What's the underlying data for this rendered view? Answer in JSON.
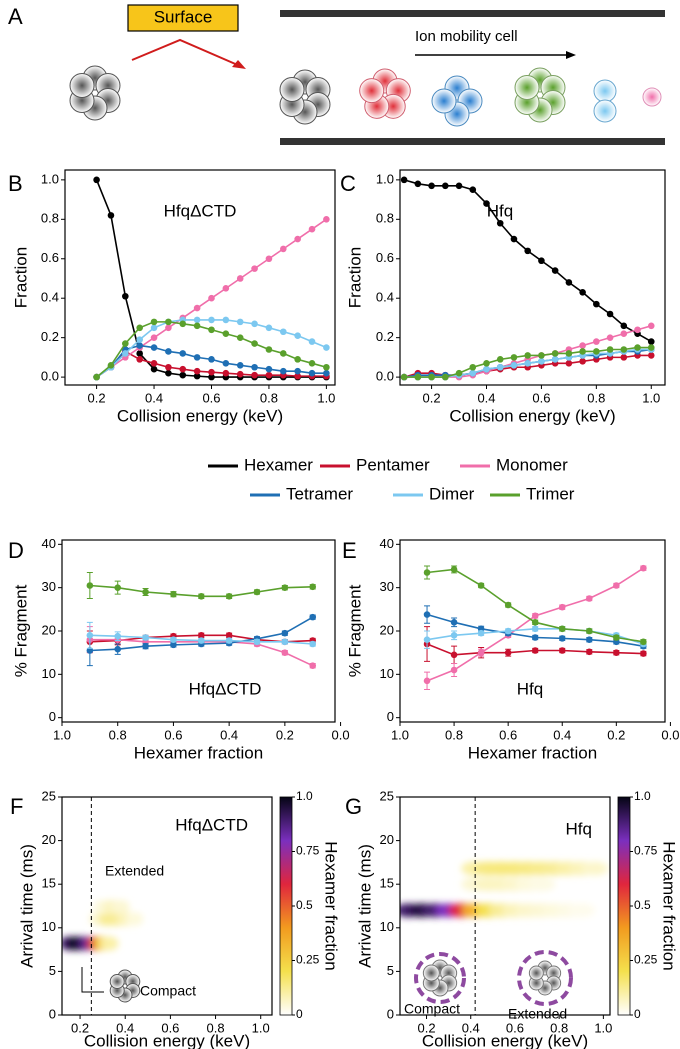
{
  "panel_a": {
    "label": "A",
    "surface": "Surface",
    "cell": "Ion mobility cell"
  },
  "legend": [
    {
      "name": "Hexamer",
      "color": "#000000"
    },
    {
      "name": "Pentamer",
      "color": "#c8102e"
    },
    {
      "name": "Monomer",
      "color": "#f06eaa"
    },
    {
      "name": "Tetramer",
      "color": "#1f6fb4"
    },
    {
      "name": "Dimer",
      "color": "#7cc8f0"
    },
    {
      "name": "Trimer",
      "color": "#5aa02c"
    }
  ],
  "chart_data": [
    {
      "type": "line",
      "panel": "B",
      "annotation": "HfqΔCTD",
      "xlabel": "Collision energy (keV)",
      "ylabel": "Fraction",
      "x": [
        0.2,
        0.25,
        0.3,
        0.35,
        0.4,
        0.45,
        0.5,
        0.55,
        0.6,
        0.65,
        0.7,
        0.75,
        0.8,
        0.85,
        0.9,
        0.95,
        1.0
      ],
      "xlim": [
        0.09,
        1.03
      ],
      "xticks": [
        0.2,
        0.4,
        0.6,
        0.8,
        {
          "value": 1,
          "label": "1.0"
        }
      ],
      "ylim": [
        -0.04,
        1.05
      ],
      "yticks": [
        {
          "value": 0,
          "label": "0.0"
        },
        0.2,
        0.4,
        0.6,
        0.8,
        {
          "value": 1,
          "label": "1.0"
        }
      ],
      "series": [
        {
          "color": "#000000",
          "values": [
            1.0,
            0.82,
            0.41,
            0.12,
            0.04,
            0.02,
            0.01,
            0.005,
            0,
            0,
            0,
            0,
            0,
            0,
            0,
            0,
            0
          ]
        },
        {
          "color": "#c8102e",
          "values": [
            0,
            0.05,
            0.13,
            0.09,
            0.07,
            0.05,
            0.04,
            0.03,
            0.025,
            0.02,
            0.015,
            0.01,
            0.01,
            0.01,
            0.005,
            0.005,
            0.005
          ]
        },
        {
          "color": "#f06eaa",
          "values": [
            0,
            0.05,
            0.1,
            0.15,
            0.2,
            0.25,
            0.3,
            0.35,
            0.4,
            0.45,
            0.5,
            0.55,
            0.6,
            0.65,
            0.7,
            0.75,
            0.8
          ]
        },
        {
          "color": "#1f6fb4",
          "values": [
            0,
            0.05,
            0.14,
            0.16,
            0.15,
            0.13,
            0.12,
            0.1,
            0.09,
            0.07,
            0.06,
            0.05,
            0.04,
            0.03,
            0.03,
            0.02,
            0.02
          ]
        },
        {
          "color": "#7cc8f0",
          "values": [
            0,
            0.05,
            0.12,
            0.19,
            0.25,
            0.28,
            0.29,
            0.29,
            0.29,
            0.29,
            0.28,
            0.27,
            0.25,
            0.23,
            0.21,
            0.18,
            0.15
          ]
        },
        {
          "color": "#5aa02c",
          "values": [
            0,
            0.06,
            0.17,
            0.25,
            0.28,
            0.28,
            0.27,
            0.26,
            0.24,
            0.22,
            0.2,
            0.17,
            0.14,
            0.12,
            0.09,
            0.07,
            0.05
          ]
        }
      ]
    },
    {
      "type": "line",
      "panel": "C",
      "annotation": "Hfq",
      "xlabel": "Collision energy (keV)",
      "ylabel": "Fraction",
      "x": [
        0.1,
        0.15,
        0.2,
        0.25,
        0.3,
        0.35,
        0.4,
        0.45,
        0.5,
        0.55,
        0.6,
        0.65,
        0.7,
        0.75,
        0.8,
        0.85,
        0.9,
        0.95,
        1.0
      ],
      "xlim": [
        0.085,
        1.05
      ],
      "xticks": [
        0.2,
        0.4,
        0.6,
        0.8,
        {
          "value": 1,
          "label": "1.0"
        }
      ],
      "ylim": [
        -0.04,
        1.05
      ],
      "yticks": [
        {
          "value": 0,
          "label": "0.0"
        },
        0.2,
        0.4,
        0.6,
        0.8,
        {
          "value": 1,
          "label": "1.0"
        }
      ],
      "series": [
        {
          "color": "#000000",
          "values": [
            1.0,
            0.98,
            0.97,
            0.97,
            0.97,
            0.95,
            0.88,
            0.78,
            0.7,
            0.64,
            0.59,
            0.54,
            0.48,
            0.43,
            0.37,
            0.32,
            0.26,
            0.22,
            0.18
          ]
        },
        {
          "color": "#c8102e",
          "values": [
            0,
            0.02,
            0.02,
            0.01,
            0.01,
            0.02,
            0.03,
            0.04,
            0.05,
            0.05,
            0.06,
            0.07,
            0.07,
            0.08,
            0.09,
            0.1,
            0.1,
            0.11,
            0.11
          ]
        },
        {
          "color": "#f06eaa",
          "values": [
            0,
            0,
            0,
            0,
            0,
            0.01,
            0.03,
            0.05,
            0.07,
            0.09,
            0.11,
            0.12,
            0.14,
            0.16,
            0.18,
            0.2,
            0.22,
            0.24,
            0.26
          ]
        },
        {
          "color": "#1f6fb4",
          "values": [
            0,
            0.01,
            0.01,
            0.01,
            0.01,
            0.02,
            0.04,
            0.05,
            0.06,
            0.07,
            0.08,
            0.09,
            0.1,
            0.11,
            0.11,
            0.12,
            0.13,
            0.13,
            0.14
          ]
        },
        {
          "color": "#7cc8f0",
          "values": [
            0,
            0,
            0,
            0,
            0.01,
            0.02,
            0.04,
            0.05,
            0.06,
            0.07,
            0.08,
            0.09,
            0.1,
            0.11,
            0.12,
            0.12,
            0.13,
            0.14,
            0.14
          ]
        },
        {
          "color": "#5aa02c",
          "values": [
            0,
            0,
            0,
            0,
            0.02,
            0.05,
            0.07,
            0.09,
            0.1,
            0.11,
            0.11,
            0.12,
            0.12,
            0.13,
            0.13,
            0.14,
            0.14,
            0.15,
            0.15
          ]
        }
      ]
    },
    {
      "type": "line",
      "panel": "D",
      "annotation": "HfqΔCTD",
      "xlabel": "Hexamer fraction",
      "ylabel": "% Fragment",
      "x": [
        0.9,
        0.8,
        0.7,
        0.6,
        0.5,
        0.4,
        0.3,
        0.2,
        0.1
      ],
      "xlim": [
        1.0,
        0.02
      ],
      "xticks": [
        {
          "value": 1,
          "label": "1.0"
        },
        0.8,
        0.6,
        0.4,
        0.2,
        {
          "value": 0,
          "label": "0.0"
        }
      ],
      "ylim": [
        -1,
        41
      ],
      "yticks": [
        0,
        10,
        20,
        30,
        40
      ],
      "series": [
        {
          "color": "#c8102e",
          "values": [
            17.5,
            17.8,
            18.5,
            18.8,
            19,
            19,
            18,
            17.5,
            17.8
          ],
          "errors": [
            2.5,
            1,
            0.5,
            0.5,
            0.5,
            0.5,
            0.5,
            0.5,
            0.5
          ]
        },
        {
          "color": "#f06eaa",
          "values": [
            18,
            18,
            17.5,
            17.5,
            17.5,
            17.5,
            17,
            15,
            12
          ],
          "errors": [
            3,
            1,
            0.5,
            0.5,
            0.5,
            0.5,
            0.5,
            0.5,
            0.5
          ]
        },
        {
          "color": "#1f6fb4",
          "values": [
            15.5,
            15.8,
            16.5,
            16.8,
            17,
            17.2,
            18.2,
            19.5,
            23.2
          ],
          "errors": [
            3.5,
            1.2,
            0.6,
            0.5,
            0.5,
            0.5,
            0.5,
            0.5,
            0.5
          ]
        },
        {
          "color": "#7cc8f0",
          "values": [
            19,
            18.8,
            18.5,
            18,
            17.8,
            17.8,
            17.5,
            17.5,
            17
          ],
          "errors": [
            3,
            1,
            0.5,
            0.5,
            0.5,
            0.5,
            0.5,
            0.5,
            0.5
          ]
        },
        {
          "color": "#5aa02c",
          "values": [
            30.5,
            30,
            29,
            28.5,
            28,
            28,
            29,
            30,
            30.2
          ],
          "errors": [
            3,
            1.5,
            0.8,
            0.6,
            0.5,
            0.5,
            0.5,
            0.5,
            0.5
          ]
        }
      ]
    },
    {
      "type": "line",
      "panel": "E",
      "annotation": "Hfq",
      "xlabel": "Hexamer fraction",
      "ylabel": "% Fragment",
      "x": [
        0.9,
        0.8,
        0.7,
        0.6,
        0.5,
        0.4,
        0.3,
        0.2,
        0.1
      ],
      "xlim": [
        1.0,
        0.02
      ],
      "xticks": [
        {
          "value": 1,
          "label": "1.0"
        },
        0.8,
        0.6,
        0.4,
        0.2,
        {
          "value": 0,
          "label": "0.0"
        }
      ],
      "ylim": [
        -1,
        41
      ],
      "yticks": [
        0,
        10,
        20,
        30,
        40
      ],
      "series": [
        {
          "color": "#c8102e",
          "values": [
            17,
            14.5,
            15,
            15,
            15.5,
            15.5,
            15.2,
            15,
            14.8
          ],
          "errors": [
            4,
            2,
            1.2,
            0.8,
            0.5,
            0.5,
            0.5,
            0.5,
            0.5
          ]
        },
        {
          "color": "#f06eaa",
          "values": [
            8.5,
            11,
            15,
            19,
            23.5,
            25.5,
            27.5,
            30.5,
            34.5
          ],
          "errors": [
            2,
            1.5,
            0.8,
            0.5,
            0.5,
            0.5,
            0.5,
            0.5,
            0.5
          ]
        },
        {
          "color": "#1f6fb4",
          "values": [
            23.8,
            22,
            20.5,
            19.5,
            18.5,
            18.3,
            18,
            17.5,
            16.5
          ],
          "errors": [
            2,
            1,
            0.6,
            0.5,
            0.5,
            0.5,
            0.5,
            0.5,
            0.5
          ]
        },
        {
          "color": "#7cc8f0",
          "values": [
            18,
            19,
            19.5,
            20,
            20.5,
            20.5,
            20,
            19,
            17
          ],
          "errors": [
            2,
            1,
            0.5,
            0.5,
            0.5,
            0.5,
            0.5,
            0.5,
            0.5
          ]
        },
        {
          "color": "#5aa02c",
          "values": [
            33.5,
            34.2,
            30.5,
            26,
            22,
            20.5,
            20,
            18.5,
            17.5
          ],
          "errors": [
            1.5,
            0.8,
            0.5,
            0.5,
            0.5,
            0.5,
            0.5,
            0.5,
            0.5
          ]
        }
      ]
    },
    {
      "type": "heatmap",
      "panel": "F",
      "annotation": "HfqΔCTD",
      "xlabel": "Collision energy (keV)",
      "ylabel": "Arrival time (ms)",
      "extended_label": "Extended",
      "compact_label": "Compact",
      "divider_x": 0.25,
      "xlim": [
        0.12,
        1.05
      ],
      "xticks": [
        0.2,
        0.4,
        0.6,
        0.8,
        {
          "value": 1,
          "label": "1.0"
        }
      ],
      "ylim": [
        0,
        25
      ],
      "yticks": [
        0,
        5,
        10,
        15,
        20,
        25
      ],
      "spots": {
        "x": [
          0.15,
          0.18,
          0.21,
          0.24,
          0.27,
          0.3,
          0.33,
          0.28,
          0.32,
          0.36,
          0.4,
          0.44,
          0.3,
          0.34,
          0.38
        ],
        "y": [
          8.2,
          8.2,
          8.2,
          8.2,
          8.2,
          8.2,
          8.2,
          11,
          11,
          11,
          11,
          11,
          12.4,
          12.4,
          12.4
        ],
        "values": [
          0.9,
          1.0,
          0.95,
          0.85,
          0.55,
          0.25,
          0.1,
          0.05,
          0.12,
          0.12,
          0.08,
          0.04,
          0.04,
          0.07,
          0.05
        ]
      },
      "colorbar_label": "Hexamer fraction",
      "clim": [
        0,
        1
      ],
      "cticks": [
        0,
        0.25,
        0.5,
        0.75,
        {
          "value": 1,
          "label": "1.0"
        }
      ],
      "colormap": [
        "#ffffff",
        "#f4e04d",
        "#f29b1f",
        "#e0263d",
        "#7b2fbe",
        "#050514"
      ]
    },
    {
      "type": "heatmap",
      "panel": "G",
      "annotation": "Hfq",
      "xlabel": "Collision energy (keV)",
      "ylabel": "Arrival time (ms)",
      "extended_label": "Extended",
      "compact_label": "Compact",
      "divider_x": 0.42,
      "xlim": [
        0.08,
        1.03
      ],
      "xticks": [
        0.2,
        0.4,
        0.6,
        0.8,
        {
          "value": 1,
          "label": "1.0"
        }
      ],
      "ylim": [
        0,
        25
      ],
      "yticks": [
        0,
        5,
        10,
        15,
        20,
        25
      ],
      "spots": {
        "x": [
          0.12,
          0.18,
          0.24,
          0.3,
          0.36,
          0.42,
          0.48,
          0.54,
          0.6,
          0.66,
          0.72,
          0.78,
          0.84,
          0.9,
          0.42,
          0.48,
          0.54,
          0.6,
          0.66,
          0.72,
          0.78,
          0.84,
          0.9,
          0.96,
          0.42,
          0.48,
          0.54,
          0.6,
          0.66,
          0.72
        ],
        "y": [
          12,
          12,
          12,
          12,
          12,
          12,
          12,
          12,
          12,
          12,
          12,
          12,
          12,
          12,
          16.8,
          16.8,
          16.8,
          16.8,
          16.8,
          16.8,
          16.8,
          16.8,
          16.8,
          16.8,
          15,
          15,
          15,
          15,
          15,
          15
        ],
        "values": [
          0.9,
          0.95,
          0.9,
          0.8,
          0.6,
          0.35,
          0.2,
          0.12,
          0.08,
          0.06,
          0.05,
          0.04,
          0.03,
          0.02,
          0.1,
          0.14,
          0.15,
          0.15,
          0.14,
          0.13,
          0.12,
          0.1,
          0.08,
          0.06,
          0.05,
          0.07,
          0.07,
          0.06,
          0.04,
          0.03
        ]
      },
      "colorbar_label": "Hexamer fraction",
      "clim": [
        0,
        1
      ],
      "cticks": [
        0,
        0.25,
        0.5,
        0.75,
        {
          "value": 1,
          "label": "1.0"
        }
      ],
      "colormap": [
        "#ffffff",
        "#f4e04d",
        "#f29b1f",
        "#e0263d",
        "#7b2fbe",
        "#050514"
      ]
    }
  ]
}
